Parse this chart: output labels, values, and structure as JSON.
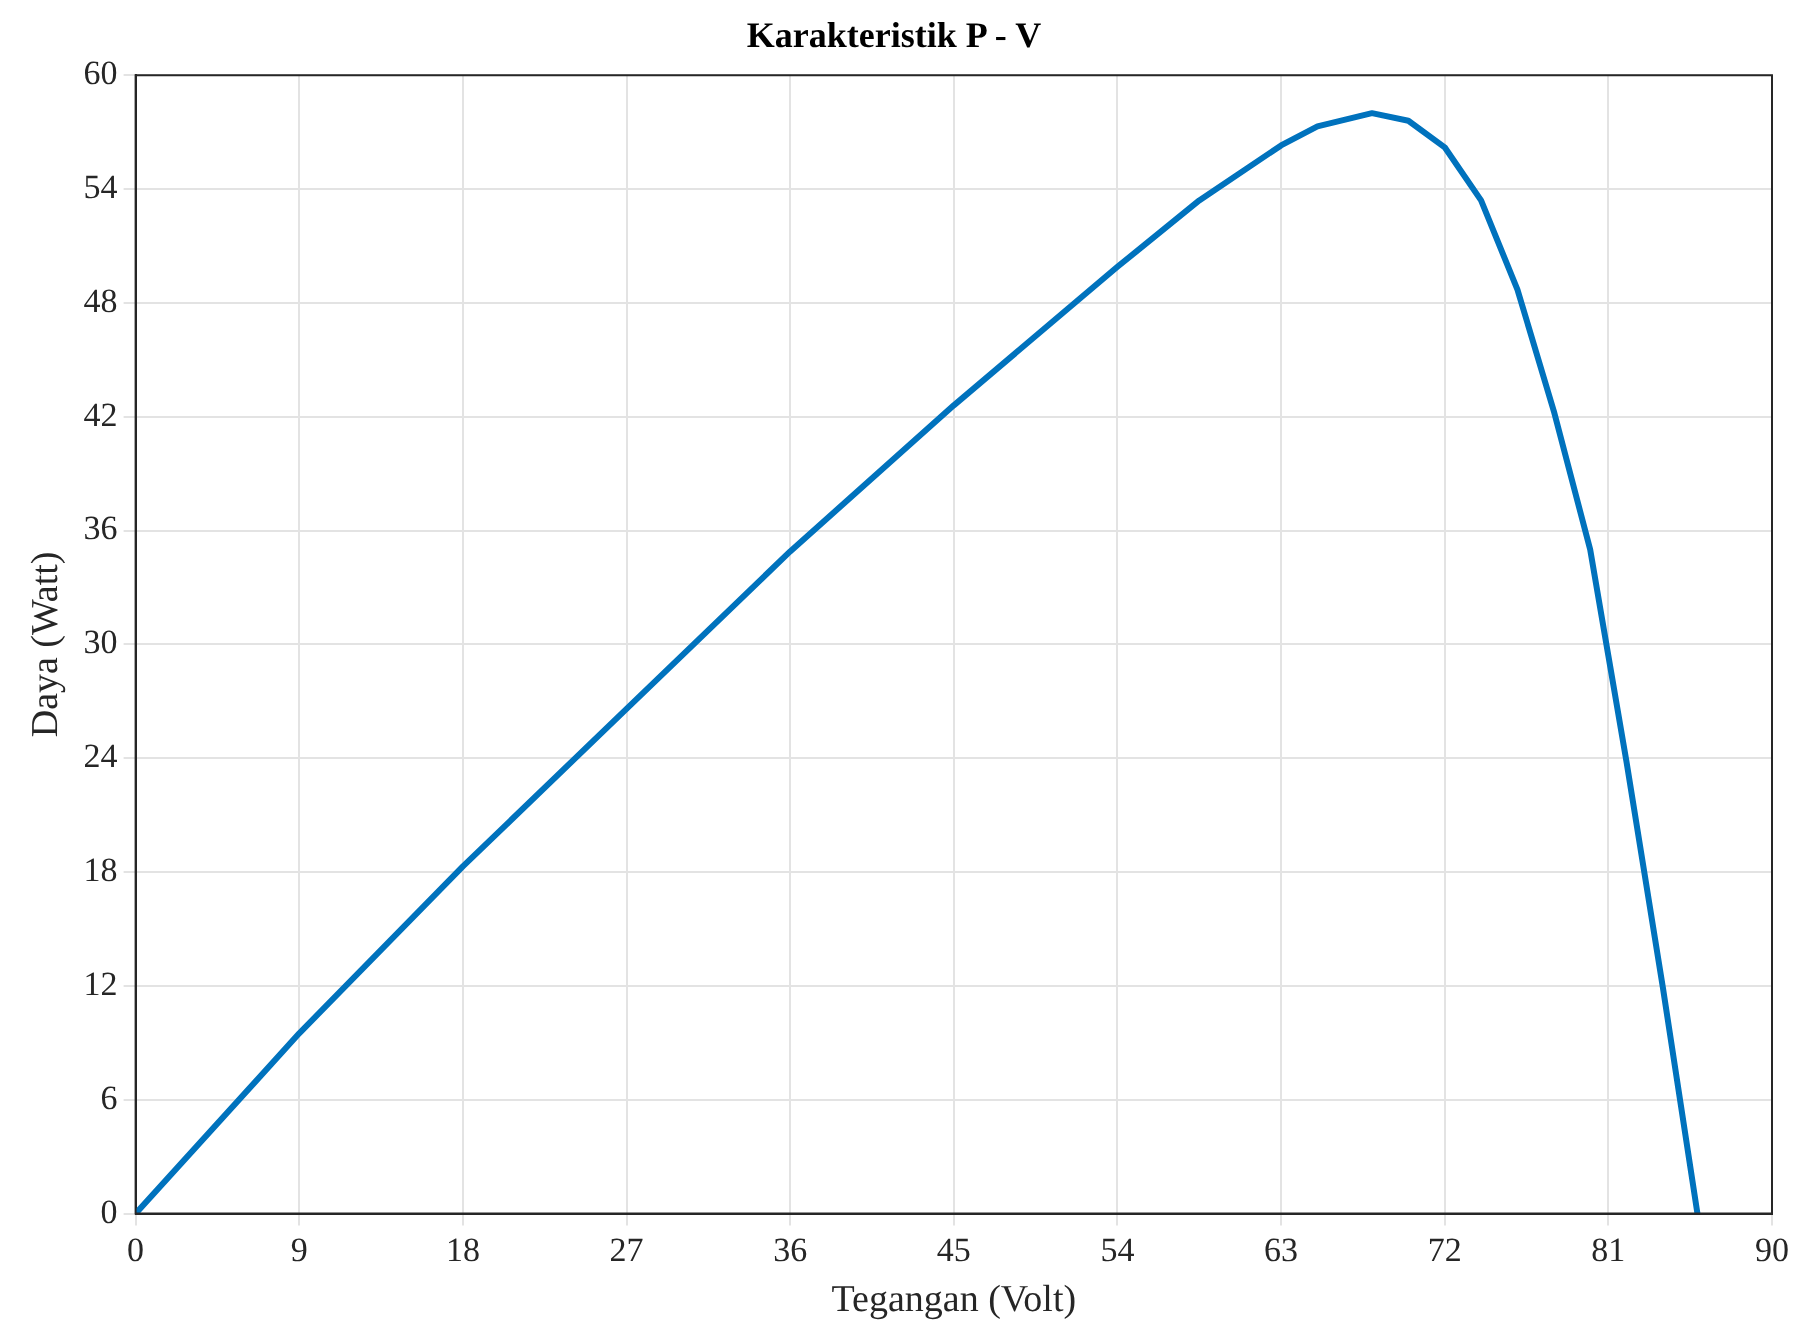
{
  "chart_data": {
    "type": "line",
    "title": "Karakteristik P - V",
    "xlabel": "Tegangan (Volt)",
    "ylabel": "Daya (Watt)",
    "x": [
      0,
      9,
      18,
      27,
      36,
      45,
      54,
      58.5,
      63,
      65,
      68,
      70,
      72,
      74,
      76,
      78,
      80,
      81,
      82,
      84,
      85.9
    ],
    "series": [
      {
        "color": "#0072bd",
        "values": [
          0,
          9.5,
          18.3,
          26.6,
          34.9,
          42.6,
          49.9,
          53.4,
          56.3,
          57.3,
          58,
          57.6,
          56.2,
          53.4,
          48.7,
          42.3,
          35,
          29.4,
          23.8,
          11.9,
          0
        ]
      }
    ],
    "xlim": [
      0,
      90
    ],
    "xticks": [
      0,
      9,
      18,
      27,
      36,
      45,
      54,
      63,
      72,
      81,
      90
    ],
    "ylim": [
      0,
      60
    ],
    "yticks": [
      0,
      6,
      12,
      18,
      24,
      30,
      36,
      42,
      48,
      54,
      60
    ],
    "grid": true,
    "marker": "none",
    "line_style": "solid",
    "legend": false
  }
}
